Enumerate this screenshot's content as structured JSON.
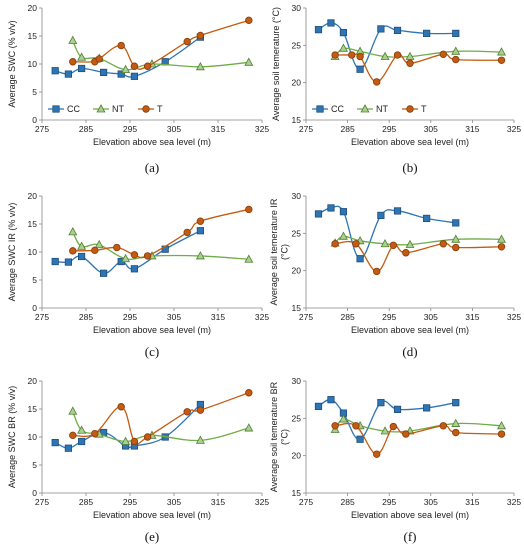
{
  "colors": {
    "CC": "#2e75b6",
    "NT": "#70ad47",
    "T": "#c55a11",
    "axis": "#888888"
  },
  "legend": [
    "CC",
    "NT",
    "T"
  ],
  "chart_data": [
    {
      "panel": "(a)",
      "type": "line",
      "ylabel": "Average SWC (% v/v)",
      "xlabel": "Elevation above sea level (m)",
      "xlim": [
        275,
        325
      ],
      "ylim": [
        0,
        20
      ],
      "xticks": [
        275,
        285,
        295,
        305,
        315,
        325
      ],
      "yticks": [
        0,
        5,
        10,
        15,
        20
      ],
      "legend_position": "bottom-left",
      "series": [
        {
          "name": "CC",
          "marker": "square",
          "x": [
            278,
            281,
            284,
            289,
            293,
            296,
            303,
            311
          ],
          "y": [
            8.8,
            8.2,
            9.2,
            8.5,
            8.2,
            7.8,
            10.4,
            14.8
          ]
        },
        {
          "name": "NT",
          "marker": "triangle",
          "x": [
            282,
            284,
            288,
            294,
            300,
            311,
            322
          ],
          "y": [
            14.2,
            11.2,
            11.0,
            9.0,
            10.0,
            9.5,
            10.3
          ]
        },
        {
          "name": "T",
          "marker": "circle",
          "x": [
            282,
            287,
            288,
            293,
            296,
            299,
            308,
            311,
            322
          ],
          "y": [
            10.4,
            10.4,
            10.9,
            13.3,
            9.6,
            9.6,
            14.0,
            15.1,
            17.8
          ]
        }
      ]
    },
    {
      "panel": "(b)",
      "type": "line",
      "ylabel": "Average soil temerature (°C)",
      "xlabel": "Elevation above sea level (m)",
      "xlim": [
        275,
        325
      ],
      "ylim": [
        15,
        30
      ],
      "xticks": [
        275,
        285,
        295,
        305,
        315,
        325
      ],
      "yticks": [
        15,
        20,
        25,
        30
      ],
      "legend_position": "bottom-left",
      "series": [
        {
          "name": "CC",
          "marker": "square",
          "x": [
            278,
            281,
            284,
            288,
            293,
            297,
            304,
            311
          ],
          "y": [
            27.1,
            28.0,
            26.7,
            21.8,
            27.2,
            27.0,
            26.6,
            26.6
          ]
        },
        {
          "name": "NT",
          "marker": "triangle",
          "x": [
            282,
            284,
            288,
            294,
            300,
            311,
            322
          ],
          "y": [
            23.5,
            24.6,
            24.2,
            23.5,
            23.5,
            24.2,
            24.1
          ]
        },
        {
          "name": "T",
          "marker": "circle",
          "x": [
            282,
            286,
            288,
            292,
            297,
            300,
            308,
            311,
            322
          ],
          "y": [
            23.7,
            23.7,
            23.5,
            20.1,
            23.7,
            22.6,
            23.8,
            23.1,
            23.0
          ]
        }
      ]
    },
    {
      "panel": "(c)",
      "type": "line",
      "ylabel": "Average SWC IR (% v/v)",
      "xlabel": "Elevation above sea level (m)",
      "xlim": [
        275,
        325
      ],
      "ylim": [
        0,
        20
      ],
      "xticks": [
        275,
        285,
        295,
        305,
        315,
        325
      ],
      "yticks": [
        0,
        5,
        10,
        15,
        20
      ],
      "series": [
        {
          "name": "CC",
          "marker": "square",
          "x": [
            278,
            281,
            284,
            289,
            293,
            296,
            303,
            311
          ],
          "y": [
            8.3,
            8.2,
            9.2,
            6.2,
            8.3,
            7.0,
            10.5,
            13.8
          ]
        },
        {
          "name": "NT",
          "marker": "triangle",
          "x": [
            282,
            284,
            288,
            294,
            300,
            311,
            322
          ],
          "y": [
            13.6,
            11.0,
            11.3,
            8.8,
            9.3,
            9.3,
            8.7
          ]
        },
        {
          "name": "T",
          "marker": "circle",
          "x": [
            282,
            287,
            292,
            296,
            299,
            308,
            311,
            322
          ],
          "y": [
            10.2,
            10.3,
            10.8,
            9.5,
            9.3,
            13.5,
            15.5,
            17.6
          ]
        }
      ]
    },
    {
      "panel": "(d)",
      "type": "line",
      "ylabel": "Average soil temerature IR (°C)",
      "xlabel": "Elevation above sea level (m)",
      "xlim": [
        275,
        325
      ],
      "ylim": [
        15,
        30
      ],
      "xticks": [
        275,
        285,
        295,
        305,
        315,
        325
      ],
      "yticks": [
        15,
        20,
        25,
        30
      ],
      "series": [
        {
          "name": "CC",
          "marker": "square",
          "x": [
            278,
            281,
            284,
            288,
            293,
            297,
            304,
            311
          ],
          "y": [
            27.6,
            28.4,
            27.9,
            21.6,
            27.4,
            28.0,
            27.0,
            26.4
          ]
        },
        {
          "name": "NT",
          "marker": "triangle",
          "x": [
            282,
            284,
            288,
            294,
            300,
            311,
            322
          ],
          "y": [
            23.7,
            24.6,
            24.0,
            23.6,
            23.5,
            24.2,
            24.2
          ]
        },
        {
          "name": "T",
          "marker": "circle",
          "x": [
            282,
            287,
            292,
            296,
            299,
            308,
            311,
            322
          ],
          "y": [
            23.6,
            23.6,
            19.9,
            23.4,
            22.4,
            23.6,
            23.1,
            23.2
          ]
        }
      ]
    },
    {
      "panel": "(e)",
      "type": "line",
      "ylabel": "Average SWC BR (% v/v)",
      "xlabel": "Elevation above sea level (m)",
      "xlim": [
        275,
        325
      ],
      "ylim": [
        0,
        20
      ],
      "xticks": [
        275,
        285,
        295,
        305,
        315,
        325
      ],
      "yticks": [
        0,
        5,
        10,
        15,
        20
      ],
      "series": [
        {
          "name": "CC",
          "marker": "square",
          "x": [
            278,
            281,
            284,
            289,
            294,
            296,
            303,
            311
          ],
          "y": [
            9.0,
            8.0,
            9.2,
            10.8,
            8.4,
            8.4,
            10.0,
            15.8
          ]
        },
        {
          "name": "NT",
          "marker": "triangle",
          "x": [
            282,
            284,
            288,
            294,
            300,
            311,
            322
          ],
          "y": [
            14.6,
            11.2,
            10.5,
            9.2,
            10.3,
            9.4,
            11.6
          ]
        },
        {
          "name": "T",
          "marker": "circle",
          "x": [
            282,
            287,
            293,
            296,
            299,
            308,
            311,
            322
          ],
          "y": [
            10.3,
            10.6,
            15.4,
            9.2,
            10.0,
            14.5,
            14.8,
            17.9
          ]
        }
      ]
    },
    {
      "panel": "(f)",
      "type": "line",
      "ylabel": "Average soil temerature BR (°C)",
      "xlabel": "Elevation above sea level (m)",
      "xlim": [
        275,
        325
      ],
      "ylim": [
        15,
        30
      ],
      "xticks": [
        275,
        285,
        295,
        305,
        315,
        325
      ],
      "yticks": [
        15,
        20,
        25,
        30
      ],
      "series": [
        {
          "name": "CC",
          "marker": "square",
          "x": [
            278,
            281,
            284,
            288,
            293,
            297,
            304,
            311
          ],
          "y": [
            26.6,
            27.5,
            25.7,
            22.2,
            27.1,
            26.2,
            26.4,
            27.1
          ]
        },
        {
          "name": "NT",
          "marker": "triangle",
          "x": [
            282,
            284,
            288,
            294,
            300,
            311,
            322
          ],
          "y": [
            23.5,
            24.9,
            24.0,
            23.3,
            23.3,
            24.3,
            24.0
          ]
        },
        {
          "name": "T",
          "marker": "circle",
          "x": [
            282,
            287,
            292,
            296,
            299,
            308,
            311,
            322
          ],
          "y": [
            24.0,
            24.0,
            20.2,
            23.9,
            22.9,
            24.0,
            23.1,
            22.9
          ]
        }
      ]
    }
  ]
}
